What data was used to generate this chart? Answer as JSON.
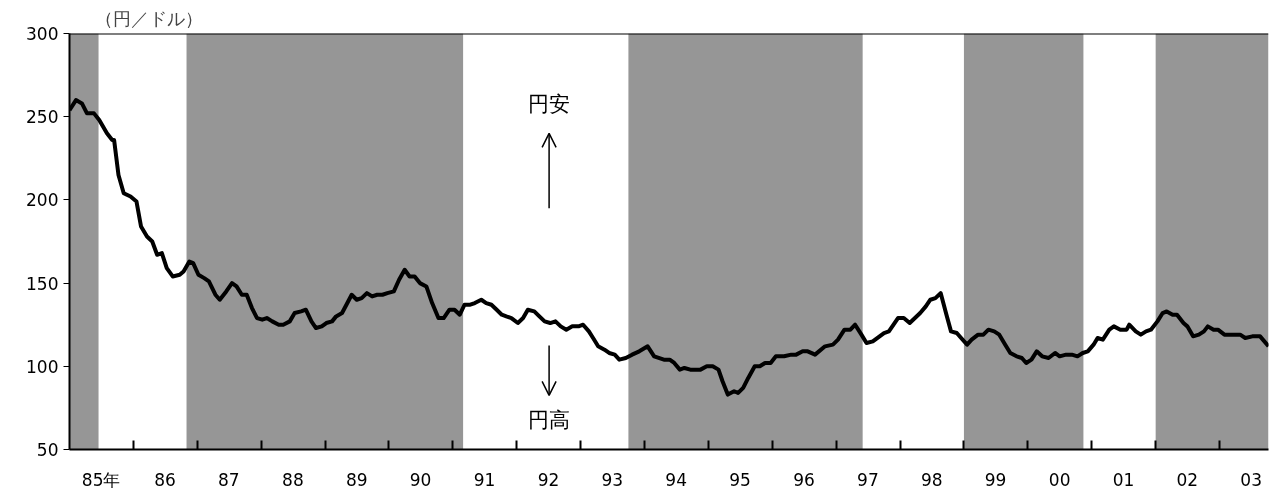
{
  "chart_data": {
    "type": "line",
    "ylabel": "（円／ドル）",
    "annotations": [
      "円安",
      "円高"
    ],
    "series": [
      {
        "color": "#000000",
        "x": [
          "1985-01-01",
          "1985-02-07",
          "1985-03-13",
          "1985-04-11",
          "1985-05-21",
          "1985-06-20",
          "1985-08-03",
          "1985-09-02",
          "1985-09-13",
          "1985-10-08",
          "1985-11-07",
          "1985-12-16",
          "1986-01-19",
          "1986-02-14",
          "1986-03-20",
          "1986-04-19",
          "1986-05-17",
          "1986-06-13",
          "1986-07-11",
          "1986-08-14",
          "1986-09-23",
          "1986-10-15",
          "1986-11-17",
          "1986-12-09",
          "1987-01-08",
          "1987-02-10",
          "1987-03-09",
          "1987-04-15",
          "1987-05-10",
          "1987-06-16",
          "1987-07-19",
          "1987-08-14",
          "1987-09-13",
          "1987-10-11",
          "1987-11-10",
          "1987-12-09",
          "1988-01-08",
          "1988-02-03",
          "1988-03-05",
          "1988-04-11",
          "1988-05-07",
          "1988-06-13",
          "1988-07-11",
          "1988-08-17",
          "1988-09-13",
          "1988-10-15",
          "1988-11-10",
          "1988-12-13",
          "1989-01-08",
          "1989-02-10",
          "1989-03-05",
          "1989-04-08",
          "1989-05-03",
          "1989-06-02",
          "1989-07-01",
          "1989-07-29",
          "1989-08-28",
          "1989-09-27",
          "1989-10-26",
          "1989-11-25",
          "1989-12-23",
          "1990-01-29",
          "1990-02-28",
          "1990-04-01",
          "1990-04-29",
          "1990-05-28",
          "1990-06-27",
          "1990-08-03",
          "1990-09-05",
          "1990-10-11",
          "1990-11-10",
          "1990-12-13",
          "1991-01-11",
          "1991-02-10",
          "1991-03-09",
          "1991-04-11",
          "1991-05-07",
          "1991-06-13",
          "1991-07-11",
          "1991-08-10",
          "1991-09-09",
          "1991-10-08",
          "1991-11-03",
          "1991-12-02",
          "1992-01-08",
          "1992-02-07",
          "1992-03-05",
          "1992-04-11",
          "1992-05-10",
          "1992-06-09",
          "1992-07-11",
          "1992-08-10",
          "1992-09-09",
          "1992-10-11",
          "1992-11-14",
          "1992-12-20",
          "1993-01-15",
          "1993-02-17",
          "1993-03-13",
          "1993-04-11",
          "1993-05-17",
          "1993-06-13",
          "1993-07-15",
          "1993-08-10",
          "1993-09-16",
          "1993-10-22",
          "1993-12-02",
          "1994-01-19",
          "1994-02-25",
          "1994-04-22",
          "1994-05-25",
          "1994-06-20",
          "1994-07-22",
          "1994-08-17",
          "1994-09-20",
          "1994-11-17",
          "1994-12-23",
          "1995-01-26",
          "1995-02-28",
          "1995-03-23",
          "1995-04-22",
          "1995-05-28",
          "1995-06-20",
          "1995-07-19",
          "1995-08-17",
          "1995-09-23",
          "1995-10-22",
          "1995-11-21",
          "1995-12-23",
          "1996-01-22",
          "1996-03-09",
          "1996-04-19",
          "1996-05-17",
          "1996-06-23",
          "1996-07-22",
          "1996-09-02",
          "1996-10-29",
          "1996-12-13",
          "1997-01-11",
          "1997-02-17",
          "1997-03-23",
          "1997-04-19",
          "1997-05-25",
          "1997-06-23",
          "1997-07-29",
          "1997-10-01",
          "1997-10-29",
          "1997-12-20",
          "1998-01-22",
          "1998-02-25",
          "1998-04-26",
          "1998-05-28",
          "1998-06-23",
          "1998-07-22",
          "1998-08-21",
          "1998-09-23",
          "1998-10-19",
          "1998-11-21",
          "1998-12-16",
          "1999-01-19",
          "1999-02-14",
          "1999-03-23",
          "1999-04-22",
          "1999-05-21",
          "1999-06-23",
          "1999-07-22",
          "1999-08-25",
          "1999-09-23",
          "1999-10-29",
          "1999-11-28",
          "1999-12-23",
          "2000-01-22",
          "2000-02-21",
          "2000-03-23",
          "2000-04-29",
          "2000-06-05",
          "2000-07-01",
          "2000-08-07",
          "2000-09-09",
          "2000-10-11",
          "2000-11-10",
          "2000-12-09",
          "2001-01-11",
          "2001-02-03",
          "2001-03-05",
          "2001-04-11",
          "2001-05-07",
          "2001-06-13",
          "2001-07-19",
          "2001-08-03",
          "2001-09-09",
          "2001-10-08",
          "2001-11-07",
          "2001-12-05",
          "2002-01-11",
          "2002-02-10",
          "2002-03-05",
          "2002-04-08",
          "2002-05-03",
          "2002-06-09",
          "2002-07-01",
          "2002-08-03",
          "2002-09-05",
          "2002-10-04",
          "2002-10-26",
          "2002-11-28",
          "2002-12-23",
          "2003-01-29",
          "2003-03-02",
          "2003-04-08",
          "2003-04-29",
          "2003-05-28",
          "2003-07-08",
          "2003-08-21",
          "2003-10-08"
        ],
        "values": [
          254,
          260,
          258,
          252,
          252,
          248,
          240,
          236,
          236,
          215,
          204,
          202,
          199,
          184,
          178,
          175,
          167,
          168,
          159,
          154,
          155,
          157,
          163,
          162,
          155,
          153,
          151,
          143,
          140,
          145,
          150,
          148,
          143,
          143,
          135,
          129,
          128,
          129,
          127,
          125,
          125,
          127,
          132,
          133,
          134,
          127,
          123,
          124,
          126,
          127,
          130,
          132,
          137,
          143,
          140,
          141,
          144,
          142,
          143,
          143,
          144,
          145,
          152,
          158,
          154,
          154,
          150,
          148,
          138,
          129,
          129,
          134,
          134,
          131,
          137,
          137,
          138,
          140,
          138,
          137,
          134,
          131,
          130,
          129,
          126,
          129,
          134,
          133,
          130,
          127,
          126,
          127,
          124,
          122,
          124,
          124,
          125,
          121,
          117,
          112,
          110,
          108,
          107,
          104,
          105,
          107,
          109,
          112,
          106,
          104,
          104,
          102,
          98,
          99,
          98,
          98,
          100,
          100,
          98,
          91,
          83,
          85,
          84,
          87,
          93,
          100,
          100,
          102,
          102,
          106,
          106,
          107,
          107,
          109,
          109,
          107,
          112,
          113,
          116,
          122,
          122,
          125,
          119,
          114,
          115,
          120,
          121,
          129,
          129,
          126,
          132,
          136,
          140,
          141,
          144,
          131,
          121,
          120,
          117,
          113,
          116,
          119,
          119,
          122,
          121,
          119,
          113,
          108,
          106,
          105,
          102,
          104,
          109,
          106,
          105,
          108,
          106,
          107,
          107,
          106,
          108,
          109,
          113,
          117,
          116,
          122,
          124,
          122,
          122,
          125,
          121,
          119,
          121,
          122,
          127,
          132,
          133,
          131,
          131,
          126,
          124,
          118,
          119,
          121,
          124,
          122,
          122,
          119,
          119,
          119,
          119,
          117,
          118,
          118,
          112
        ]
      }
    ],
    "xlim": [
      "1985-01-01",
      "2003-10-08"
    ],
    "ylim": [
      50,
      300
    ],
    "yticks": [
      50,
      100,
      150,
      200,
      250,
      300
    ],
    "xticks": [
      {
        "value": "1985-07-01",
        "label": "85年"
      },
      {
        "value": "1986-01-01",
        "label": null
      },
      {
        "value": "1986-07-01",
        "label": "86"
      },
      {
        "value": "1987-01-01",
        "label": null
      },
      {
        "value": "1987-07-01",
        "label": "87"
      },
      {
        "value": "1988-01-01",
        "label": null
      },
      {
        "value": "1988-07-01",
        "label": "88"
      },
      {
        "value": "1989-01-01",
        "label": null
      },
      {
        "value": "1989-07-01",
        "label": "89"
      },
      {
        "value": "1990-01-01",
        "label": null
      },
      {
        "value": "1990-07-01",
        "label": "90"
      },
      {
        "value": "1991-01-01",
        "label": null
      },
      {
        "value": "1991-07-01",
        "label": "91"
      },
      {
        "value": "1992-01-01",
        "label": null
      },
      {
        "value": "1992-07-01",
        "label": "92"
      },
      {
        "value": "1993-01-01",
        "label": null
      },
      {
        "value": "1993-07-01",
        "label": "93"
      },
      {
        "value": "1994-01-01",
        "label": null
      },
      {
        "value": "1994-07-01",
        "label": "94"
      },
      {
        "value": "1995-01-01",
        "label": null
      },
      {
        "value": "1995-07-01",
        "label": "95"
      },
      {
        "value": "1996-01-01",
        "label": null
      },
      {
        "value": "1996-07-01",
        "label": "96"
      },
      {
        "value": "1997-01-01",
        "label": null
      },
      {
        "value": "1997-07-01",
        "label": "97"
      },
      {
        "value": "1998-01-01",
        "label": null
      },
      {
        "value": "1998-07-01",
        "label": "98"
      },
      {
        "value": "1999-01-01",
        "label": null
      },
      {
        "value": "1999-07-01",
        "label": "99"
      },
      {
        "value": "2000-01-01",
        "label": null
      },
      {
        "value": "2000-07-01",
        "label": "00"
      },
      {
        "value": "2001-01-01",
        "label": null
      },
      {
        "value": "2001-07-01",
        "label": "01"
      },
      {
        "value": "2002-01-01",
        "label": null
      },
      {
        "value": "2002-07-01",
        "label": "02"
      },
      {
        "value": "2003-01-01",
        "label": null
      },
      {
        "value": "2003-07-01",
        "label": "03"
      }
    ],
    "bands": [
      {
        "axis": "x",
        "from": "1985-01-01",
        "to": "1985-06-16",
        "color": "#969696"
      },
      {
        "axis": "x",
        "from": "1986-11-01",
        "to": "1991-03-01",
        "color": "#969696"
      },
      {
        "axis": "x",
        "from": "1993-10-01",
        "to": "1997-06-01",
        "color": "#969696"
      },
      {
        "axis": "x",
        "from": "1999-01-01",
        "to": "2000-11-14",
        "color": "#969696"
      },
      {
        "axis": "x",
        "from": "2002-01-01",
        "to": "2003-10-08",
        "color": "#969696"
      }
    ]
  }
}
